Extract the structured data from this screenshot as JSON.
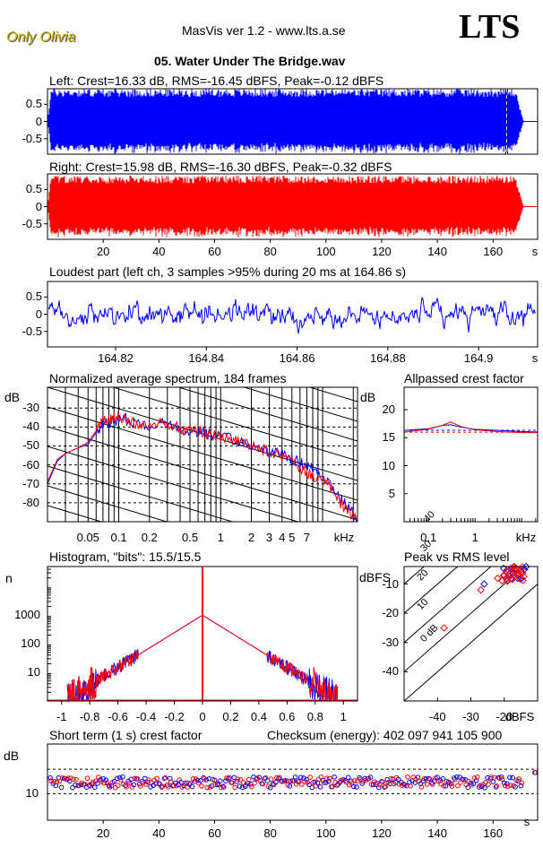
{
  "header": {
    "brand": "Only Olivia",
    "app_title": "MasVis ver 1.2 - www.lts.a.se",
    "logo": "LTS",
    "track": "05. Water Under The Bridge.wav"
  },
  "colors": {
    "left": "#0000ff",
    "right": "#ff0000",
    "frame": "#000000"
  },
  "chart_data": [
    {
      "type": "line",
      "id": "left_wave",
      "title": "Left: Crest=16.33 dB, RMS=-16.45 dBFS, Peak=-0.12 dBFS",
      "series": [
        {
          "name": "left",
          "kind": "waveform",
          "peak": 0.95,
          "rms": 0.15
        }
      ],
      "xlim": [
        0,
        176
      ],
      "ylim": [
        -0.95,
        0.95
      ],
      "yticks": [
        0.5,
        0,
        -0.5
      ],
      "ytick_labels": [
        "0.5",
        "0",
        "-0.5"
      ],
      "marker_time": 164.86,
      "fadeout_start": 168,
      "fadeout_end": 171
    },
    {
      "type": "line",
      "id": "right_wave",
      "title": "Right: Crest=15.98 dB, RMS=-16.30 dBFS, Peak=-0.32 dBFS",
      "series": [
        {
          "name": "right",
          "kind": "waveform",
          "peak": 0.9,
          "rms": 0.15
        }
      ],
      "xlim": [
        0,
        176
      ],
      "ylim": [
        -0.95,
        0.95
      ],
      "yticks": [
        0.5,
        0,
        -0.5
      ],
      "ytick_labels": [
        "0.5",
        "0",
        "-0.5"
      ],
      "xticks": [
        20,
        40,
        60,
        80,
        100,
        120,
        140,
        160
      ],
      "xtick_labels": [
        "20",
        "40",
        "60",
        "80",
        "100",
        "120",
        "140",
        "160"
      ],
      "xunit": "s",
      "fadeout_start": 168,
      "fadeout_end": 171
    },
    {
      "type": "line",
      "id": "loudest",
      "title": "Loudest part (left  ch, 3 samples >95% during 20 ms at 164.86 s)",
      "series": [
        {
          "name": "left",
          "kind": "noise",
          "amp": 0.9
        }
      ],
      "xlim": [
        164.805,
        164.913
      ],
      "ylim": [
        -0.95,
        0.95
      ],
      "yticks": [
        0.5,
        0,
        -0.5
      ],
      "ytick_labels": [
        "0.5",
        "0",
        "-0.5"
      ],
      "xticks": [
        164.82,
        164.84,
        164.86,
        164.88,
        164.9
      ],
      "xtick_labels": [
        "164.82",
        "164.84",
        "164.86",
        "164.88",
        "164.9"
      ],
      "xunit": "s"
    },
    {
      "type": "line",
      "id": "spectrum",
      "title": "Normalized average spectrum, 184 frames",
      "ylabel": "dB",
      "xlog": true,
      "xlim": [
        0.02,
        22
      ],
      "ylim": [
        -90,
        -19
      ],
      "yticks": [
        -30,
        -40,
        -50,
        -60,
        -70,
        -80
      ],
      "ytick_labels": [
        "-30",
        "-40",
        "-50",
        "-60",
        "-70",
        "-80"
      ],
      "xticks": [
        0.05,
        0.1,
        0.2,
        0.5,
        1,
        2,
        3,
        4,
        5,
        7
      ],
      "xtick_labels": [
        "0.05",
        "0.1",
        "0.2",
        "0.5",
        "1",
        "2",
        "3",
        "4",
        "5",
        "7"
      ],
      "xunit": "kHz",
      "series": [
        {
          "name": "left",
          "points": [
            [
              0.02,
              -70
            ],
            [
              0.025,
              -58
            ],
            [
              0.03,
              -54
            ],
            [
              0.04,
              -51
            ],
            [
              0.05,
              -49
            ],
            [
              0.06,
              -43
            ],
            [
              0.07,
              -38
            ],
            [
              0.08,
              -38
            ],
            [
              0.09,
              -37
            ],
            [
              0.1,
              -36
            ],
            [
              0.12,
              -36
            ],
            [
              0.15,
              -38
            ],
            [
              0.2,
              -39
            ],
            [
              0.25,
              -38
            ],
            [
              0.3,
              -38
            ],
            [
              0.4,
              -41
            ],
            [
              0.5,
              -42
            ],
            [
              0.6,
              -42
            ],
            [
              0.7,
              -43
            ],
            [
              0.8,
              -44
            ],
            [
              1,
              -45
            ],
            [
              1.3,
              -46
            ],
            [
              1.6,
              -48
            ],
            [
              2,
              -50
            ],
            [
              2.5,
              -51
            ],
            [
              3,
              -53
            ],
            [
              4,
              -54
            ],
            [
              5,
              -57
            ],
            [
              6,
              -59
            ],
            [
              7,
              -60
            ],
            [
              8,
              -62
            ],
            [
              10,
              -65
            ],
            [
              12,
              -70
            ],
            [
              15,
              -78
            ],
            [
              18,
              -83
            ],
            [
              22,
              -88
            ]
          ]
        },
        {
          "name": "right",
          "points": [
            [
              0.02,
              -69
            ],
            [
              0.025,
              -57
            ],
            [
              0.03,
              -54
            ],
            [
              0.04,
              -51
            ],
            [
              0.05,
              -48
            ],
            [
              0.06,
              -42
            ],
            [
              0.07,
              -37
            ],
            [
              0.08,
              -36
            ],
            [
              0.09,
              -35
            ],
            [
              0.1,
              -34
            ],
            [
              0.12,
              -36
            ],
            [
              0.15,
              -38
            ],
            [
              0.2,
              -39
            ],
            [
              0.25,
              -37
            ],
            [
              0.3,
              -38
            ],
            [
              0.4,
              -41
            ],
            [
              0.5,
              -42
            ],
            [
              0.6,
              -42
            ],
            [
              0.7,
              -43
            ],
            [
              0.8,
              -44
            ],
            [
              1,
              -45
            ],
            [
              1.3,
              -46
            ],
            [
              1.6,
              -48
            ],
            [
              2,
              -50
            ],
            [
              2.5,
              -52
            ],
            [
              3,
              -53
            ],
            [
              4,
              -55
            ],
            [
              5,
              -58
            ],
            [
              6,
              -61
            ],
            [
              7,
              -64
            ],
            [
              8,
              -66
            ],
            [
              10,
              -68
            ],
            [
              12,
              -72
            ],
            [
              15,
              -80
            ],
            [
              18,
              -85
            ],
            [
              22,
              -89
            ]
          ]
        }
      ]
    },
    {
      "type": "line",
      "id": "allpassed",
      "title": "Allpassed crest factor",
      "ylabel": "dB",
      "xlog": true,
      "xlim": [
        0.03,
        22
      ],
      "ylim": [
        0,
        24
      ],
      "yticks": [
        20,
        15,
        10,
        5
      ],
      "ytick_labels": [
        "20",
        "15",
        "10",
        "5"
      ],
      "xticks": [
        0.1,
        1
      ],
      "xtick_labels": [
        "0.1",
        "1"
      ],
      "xunit": "kHz",
      "reference": [
        16.33,
        15.98
      ],
      "series": [
        {
          "name": "left",
          "points": [
            [
              0.03,
              16.3
            ],
            [
              0.1,
              16.6
            ],
            [
              0.2,
              17.2
            ],
            [
              0.3,
              17.3
            ],
            [
              0.5,
              16.9
            ],
            [
              1,
              16.5
            ],
            [
              3,
              16.3
            ],
            [
              10,
              16.1
            ],
            [
              22,
              16.0
            ]
          ]
        },
        {
          "name": "right",
          "points": [
            [
              0.03,
              16.0
            ],
            [
              0.1,
              16.5
            ],
            [
              0.2,
              17.2
            ],
            [
              0.3,
              17.8
            ],
            [
              0.5,
              17.0
            ],
            [
              1,
              16.4
            ],
            [
              3,
              16.1
            ],
            [
              10,
              15.9
            ],
            [
              22,
              15.9
            ]
          ]
        }
      ]
    },
    {
      "type": "line",
      "id": "histogram",
      "title": "Histogram, \"bits\": 15.5/15.5",
      "ylabel": "n",
      "ylog": true,
      "xlim": [
        -1.1,
        1.1
      ],
      "ylim": [
        1,
        50000
      ],
      "yticks": [
        1000,
        100,
        10
      ],
      "ytick_labels": [
        "1000",
        "100",
        "10"
      ],
      "xticks": [
        -1,
        -0.8,
        -0.6,
        -0.4,
        -0.2,
        0,
        0.2,
        0.4,
        0.6,
        0.8,
        1
      ],
      "xtick_labels": [
        "-1",
        "-0.8",
        "-0.6",
        "-0.4",
        "-0.2",
        "0",
        "0.2",
        "0.4",
        "0.6",
        "0.8",
        "1"
      ],
      "peak_count": 1000,
      "center_spike": 50000,
      "tail_end": 0.96
    },
    {
      "type": "scatter",
      "id": "peak_rms",
      "title": "Peak vs RMS level",
      "ylabel": "dBFS",
      "xlabel": "dBFS",
      "xlim": [
        -50,
        -10
      ],
      "ylim": [
        -50,
        -4
      ],
      "yticks": [
        -10,
        -20,
        -30,
        -40
      ],
      "ytick_labels": [
        "-10",
        "-20",
        "-30",
        "-40"
      ],
      "xticks": [
        -40,
        -30,
        -20
      ],
      "xtick_labels": [
        "-40",
        "-30",
        "-20"
      ],
      "diagonals": [
        {
          "offset": 0,
          "label": "0 dB"
        },
        {
          "offset": 10,
          "label": "10"
        },
        {
          "offset": 20,
          "label": "20"
        },
        {
          "offset": 30,
          "label": "30"
        },
        {
          "offset": 40,
          "label": "40"
        }
      ],
      "series": [
        {
          "name": "left",
          "points": [
            [
              -26,
              -10
            ],
            [
              -19,
              -5
            ],
            [
              -18,
              -6
            ],
            [
              -17,
              -7
            ],
            [
              -18,
              -5
            ],
            [
              -16,
              -8
            ]
          ]
        },
        {
          "name": "right",
          "points": [
            [
              -38,
              -25
            ],
            [
              -27,
              -12
            ],
            [
              -22,
              -8
            ],
            [
              -19,
              -6
            ],
            [
              -18,
              -7
            ],
            [
              -17,
              -5
            ],
            [
              -16,
              -6
            ],
            [
              -15,
              -6
            ],
            [
              -18,
              -8
            ],
            [
              -20,
              -7
            ],
            [
              -17,
              -4
            ],
            [
              -16,
              -5
            ]
          ]
        }
      ]
    },
    {
      "type": "scatter",
      "id": "short_crest",
      "title": "Short term (1 s) crest factor",
      "ylabel": "dB",
      "ylog": true,
      "xlim": [
        0,
        176
      ],
      "ylim": [
        6,
        26
      ],
      "yticks": [
        10
      ],
      "ytick_labels": [
        "10"
      ],
      "ref_lines": [
        10,
        16
      ],
      "xticks": [
        20,
        40,
        60,
        80,
        100,
        120,
        140,
        160
      ],
      "xtick_labels": [
        "20",
        "40",
        "60",
        "80",
        "100",
        "120",
        "140",
        "160"
      ],
      "xunit": "s",
      "base": 12.5,
      "last_point": 15
    }
  ],
  "checksum": "Checksum (energy):   402 097 941 105 900"
}
